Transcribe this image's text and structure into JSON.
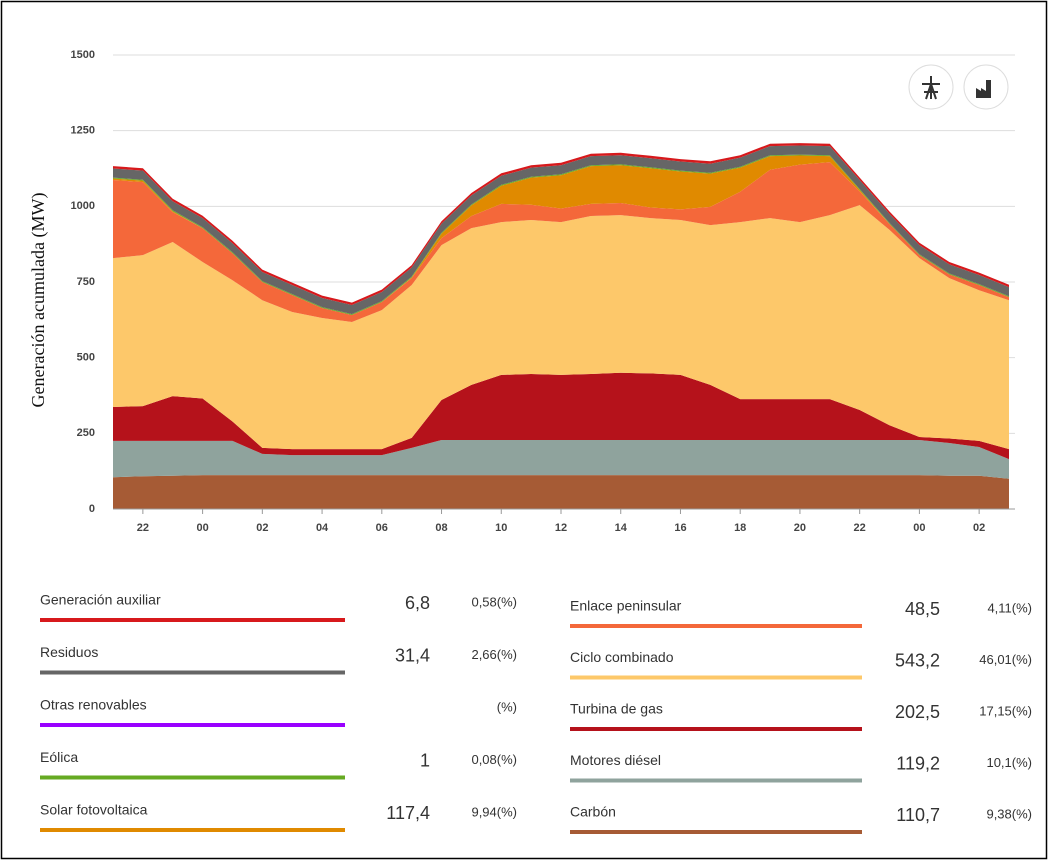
{
  "chart_data": {
    "type": "stacked-area",
    "y_label": "Generación acumulada (MW)",
    "categories": [
      null,
      "22",
      null,
      "00",
      null,
      "02",
      null,
      "04",
      null,
      "06",
      null,
      "08",
      null,
      "10",
      null,
      "12",
      null,
      "14",
      null,
      "16",
      null,
      "18",
      null,
      "20",
      null,
      "22",
      null,
      "00",
      null,
      "02",
      null
    ],
    "ylim": [
      0,
      1500
    ],
    "yticks": [
      0,
      250,
      500,
      750,
      1000,
      1250,
      1500
    ],
    "grid": true,
    "series": [
      {
        "name": "Generación auxiliar",
        "color": "#d7191c",
        "current": "6,8",
        "share": "0,58(%)",
        "values": [
          8,
          8,
          8,
          8,
          8,
          8,
          8,
          8,
          8,
          8,
          8,
          8,
          8,
          8,
          8,
          8,
          8,
          8,
          8,
          8,
          8,
          8,
          8,
          8,
          8,
          8,
          8,
          8,
          8,
          8,
          8
        ]
      },
      {
        "name": "Residuos",
        "color": "#666666",
        "current": "31,4",
        "share": "2,66(%)",
        "values": [
          30,
          30,
          30,
          30,
          30,
          30,
          30,
          30,
          30,
          30,
          30,
          30,
          30,
          30,
          30,
          30,
          30,
          30,
          30,
          30,
          30,
          30,
          30,
          30,
          30,
          30,
          30,
          30,
          30,
          30,
          30
        ]
      },
      {
        "name": "Otras renovables",
        "color": "#9900ff",
        "share": "(%)",
        "values": [
          0,
          0,
          0,
          0,
          0,
          0,
          0,
          0,
          0,
          0,
          0,
          0,
          0,
          0,
          0,
          0,
          0,
          0,
          0,
          0,
          0,
          0,
          0,
          0,
          0,
          0,
          0,
          0,
          0,
          0,
          0
        ]
      },
      {
        "name": "Eólica",
        "color": "#66aa22",
        "current": "1",
        "share": "0,08(%)",
        "values": [
          3,
          3,
          3,
          3,
          3,
          3,
          3,
          3,
          3,
          3,
          3,
          3,
          3,
          3,
          3,
          3,
          3,
          3,
          3,
          3,
          3,
          3,
          3,
          3,
          3,
          3,
          3,
          3,
          3,
          3,
          3
        ]
      },
      {
        "name": "Solar fotovoltaica",
        "color": "#e08a00",
        "current": "117,4",
        "share": "9,94(%)",
        "values": [
          5,
          5,
          3,
          0,
          0,
          0,
          0,
          0,
          0,
          0,
          2,
          15,
          35,
          60,
          90,
          110,
          125,
          125,
          130,
          125,
          110,
          80,
          45,
          30,
          20,
          5,
          0,
          0,
          0,
          0,
          0
        ]
      },
      {
        "name": "Enlace peninsular",
        "color": "#f4683a",
        "current": "48,5",
        "share": "4,11(%)",
        "values": [
          258,
          241,
          99,
          112,
          89,
          60,
          56,
          33,
          23,
          27,
          23,
          23,
          40,
          60,
          50,
          45,
          40,
          40,
          35,
          35,
          60,
          100,
          160,
          190,
          175,
          45,
          20,
          10,
          12,
          17,
          10
        ]
      },
      {
        "name": "Ciclo combinado",
        "color": "#fdc86a",
        "current": "543,2",
        "share": "46,01(%)",
        "values": [
          492,
          499,
          509,
          451,
          467,
          488,
          453,
          433,
          420,
          459,
          505,
          512,
          518,
          505,
          509,
          505,
          522,
          521,
          513,
          512,
          528,
          585,
          598,
          585,
          608,
          677,
          645,
          591,
          530,
          498,
          492
        ]
      },
      {
        "name": "Turbina de gas",
        "color": "#b5121b",
        "current": "202,5",
        "share": "17,15(%)",
        "values": [
          112,
          115,
          148,
          140,
          64,
          20,
          20,
          20,
          20,
          20,
          33,
          132,
          182,
          215,
          218,
          215,
          218,
          222,
          220,
          215,
          182,
          135,
          135,
          135,
          135,
          99,
          49,
          10,
          15,
          20,
          33
        ]
      },
      {
        "name": "Motores diésel",
        "color": "#8fa39d",
        "current": "119,2",
        "share": "10,1(%)",
        "values": [
          120,
          117,
          115,
          113,
          113,
          70,
          66,
          66,
          66,
          66,
          90,
          116,
          116,
          116,
          116,
          116,
          116,
          116,
          116,
          116,
          116,
          116,
          116,
          116,
          116,
          116,
          116,
          116,
          108,
          95,
          65
        ]
      },
      {
        "name": "Carbón",
        "color": "#a65b35",
        "current": "110,7",
        "share": "9,38(%)",
        "values": [
          105,
          108,
          110,
          112,
          112,
          112,
          112,
          112,
          112,
          112,
          112,
          112,
          112,
          112,
          112,
          112,
          112,
          112,
          112,
          112,
          112,
          112,
          112,
          112,
          112,
          112,
          112,
          112,
          110,
          110,
          100
        ]
      }
    ]
  }
}
